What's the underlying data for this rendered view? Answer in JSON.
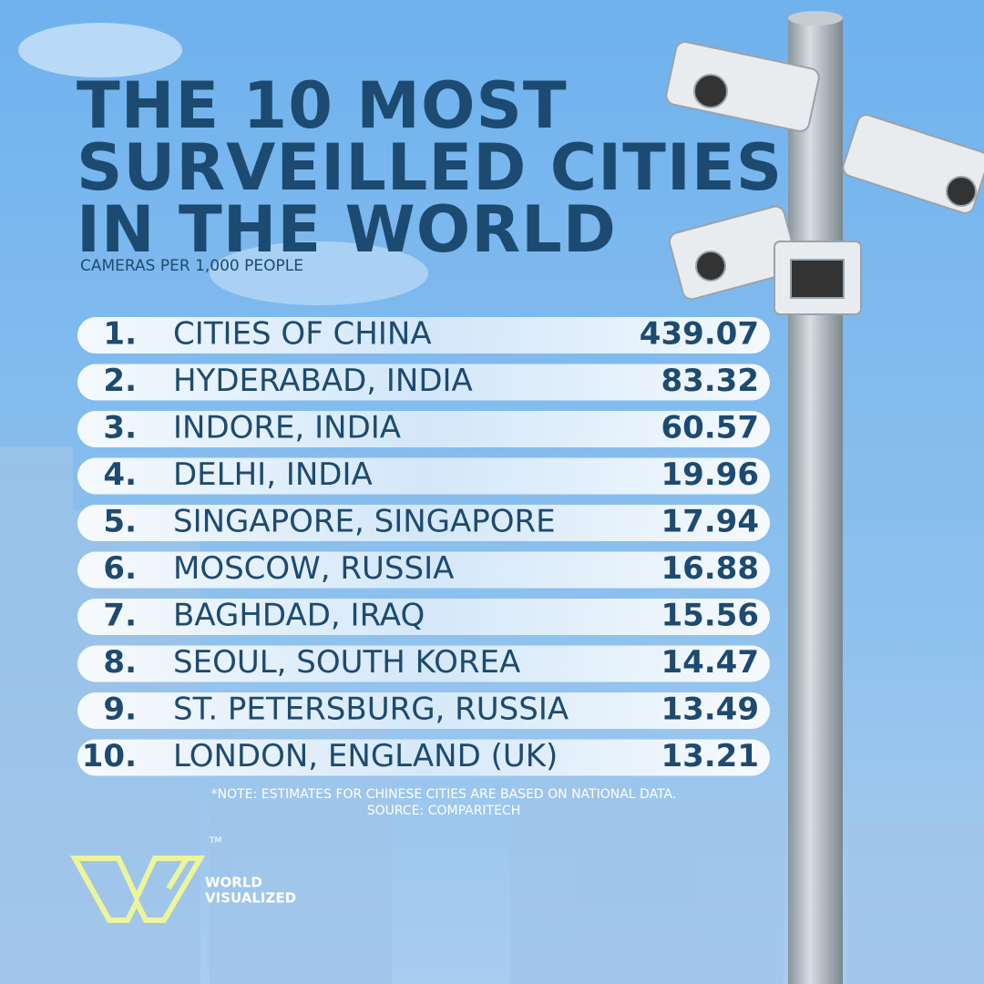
{
  "header": {
    "title_lines": [
      "THE 10 MOST",
      "SURVEILLED CITIES",
      "IN THE WORLD"
    ],
    "subtitle": "CAMERAS PER 1,000 PEOPLE"
  },
  "table": {
    "rows": [
      [
        "1.",
        "CITIES OF CHINA",
        "439.07"
      ],
      [
        "2.",
        "HYDERABAD, INDIA",
        "83.32"
      ],
      [
        "3.",
        "INDORE, INDIA",
        "60.57"
      ],
      [
        "4.",
        "DELHI, INDIA",
        "19.96"
      ],
      [
        "5.",
        "SINGAPORE, SINGAPORE",
        "17.94"
      ],
      [
        "6.",
        "MOSCOW, RUSSIA",
        "16.88"
      ],
      [
        "7.",
        "BAGHDAD, IRAQ",
        "15.56"
      ],
      [
        "8.",
        "SEOUL, SOUTH KOREA",
        "14.47"
      ],
      [
        "9.",
        "ST. PETERSBURG, RUSSIA",
        "13.49"
      ],
      [
        "10.",
        "LONDON, ENGLAND (UK)",
        "13.21"
      ]
    ]
  },
  "footer": {
    "note": "*NOTE: ESTIMATES FOR CHINESE CITIES ARE BASED ON NATIONAL DATA.",
    "source": "SOURCE: COMPARITECH",
    "logo": {
      "line1": "WORLD",
      "line2": "VISUALIZED",
      "mark": "TM"
    }
  }
}
